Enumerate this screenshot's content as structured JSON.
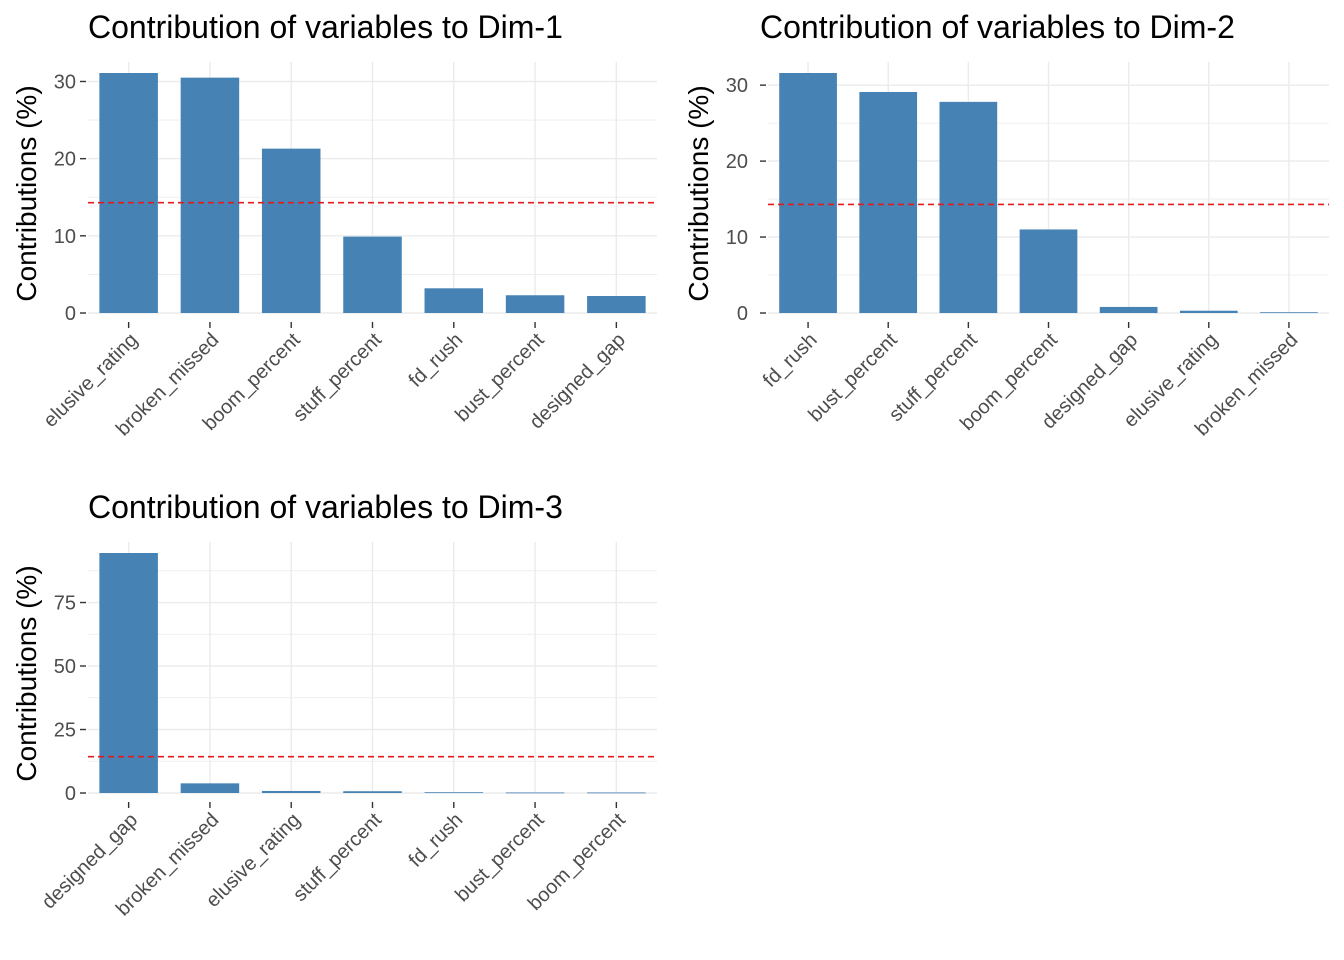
{
  "colors": {
    "bar": "#4682b4",
    "reference_line": "#e41a1c",
    "grid": "#ebebeb"
  },
  "chart_data": [
    {
      "type": "bar",
      "title": "Contribution of variables to Dim-1",
      "ylabel": "Contributions (%)",
      "xlabel": "",
      "categories": [
        "elusive_rating",
        "broken_missed",
        "boom_percent",
        "stuff_percent",
        "fd_rush",
        "bust_percent",
        "designed_gap"
      ],
      "values": [
        31.1,
        30.5,
        21.3,
        9.9,
        3.2,
        2.3,
        2.2
      ],
      "yticks": [
        0,
        10,
        20,
        30
      ],
      "ylim": [
        0,
        31.1
      ],
      "reference_line": 14.29,
      "grid": true
    },
    {
      "type": "bar",
      "title": "Contribution of variables to Dim-2",
      "ylabel": "Contributions (%)",
      "xlabel": "",
      "categories": [
        "fd_rush",
        "bust_percent",
        "stuff_percent",
        "boom_percent",
        "designed_gap",
        "elusive_rating",
        "broken_missed"
      ],
      "values": [
        31.6,
        29.1,
        27.8,
        11.0,
        0.8,
        0.3,
        0.1
      ],
      "yticks": [
        0,
        10,
        20,
        30
      ],
      "ylim": [
        0,
        31.6
      ],
      "reference_line": 14.29,
      "grid": true
    },
    {
      "type": "bar",
      "title": "Contribution of variables to Dim-3",
      "ylabel": "Contributions (%)",
      "xlabel": "",
      "categories": [
        "designed_gap",
        "broken_missed",
        "elusive_rating",
        "stuff_percent",
        "fd_rush",
        "bust_percent",
        "boom_percent"
      ],
      "values": [
        94.5,
        3.8,
        0.8,
        0.7,
        0.3,
        0.2,
        0.2
      ],
      "yticks": [
        0,
        25,
        50,
        75
      ],
      "ylim": [
        0,
        94.5
      ],
      "reference_line": 14.29,
      "grid": true
    }
  ]
}
